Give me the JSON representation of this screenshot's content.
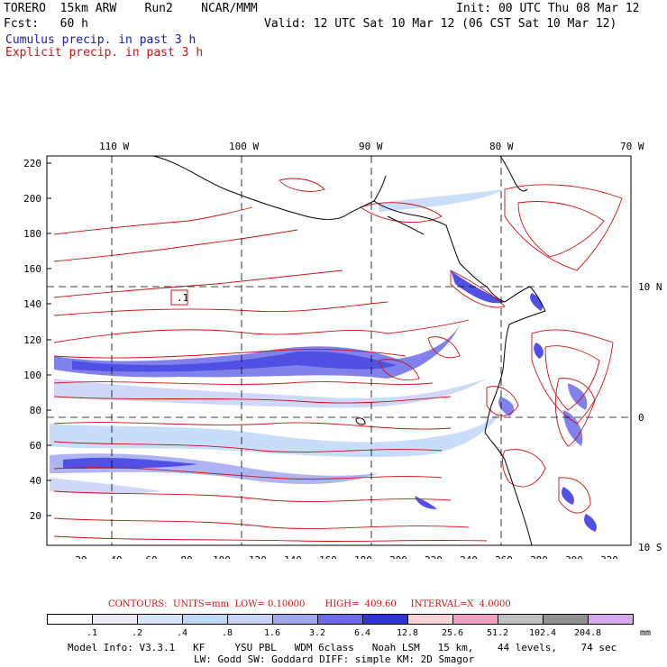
{
  "header": {
    "model_line": "TORERO  15km ARW    Run2    NCAR/MMM",
    "init_line": "Init: 00 UTC Thu 08 Mar 12",
    "fcst_line": "Fcst:   60 h",
    "valid_line": "Valid: 12 UTC Sat 10 Mar 12 (06 CST Sat 10 Mar 12)",
    "cumulus_label": "Cumulus precip. in past 3 h",
    "explicit_label": "Explicit precip. in past 3 h"
  },
  "colors": {
    "cumulus": "#1a1ab0",
    "explicit": "#d01010",
    "coastline": "#000000"
  },
  "map": {
    "top_lon_labels": [
      "110 W",
      "100 W",
      "90 W",
      "80 W",
      "70 W"
    ],
    "right_lat_labels": [
      "10 N",
      "0",
      "10 S"
    ],
    "y_axis_labels": [
      "220",
      "200",
      "180",
      "160",
      "140",
      "120",
      "100",
      "80",
      "60",
      "40",
      "20"
    ],
    "x_axis_labels": [
      "20",
      "40",
      "60",
      "80",
      "100",
      "120",
      "140",
      "160",
      "180",
      "200",
      "220",
      "240",
      "260",
      "280",
      "300",
      "320"
    ],
    "marker_label": ".1"
  },
  "contour_info": "CONTOURS:  UNITS=mm  LOW= 0.10000       HIGH=  409.60     INTERVAL=X  4.0000",
  "colorbar": {
    "levels": [
      ".1",
      ".2",
      ".4",
      ".8",
      "1.6",
      "3.2",
      "6.4",
      "12.8",
      "25.6",
      "51.2",
      "102.4",
      "204.8"
    ],
    "colors": [
      "#ffffff",
      "#ececf8",
      "#d6e6fa",
      "#bfd8f8",
      "#c8d2fa",
      "#a0a8f0",
      "#6c6ce8",
      "#3232e0",
      "#f8d4d8",
      "#f0a0c0",
      "#c0c0c0",
      "#909090",
      "#d8a8f0"
    ],
    "unit": "mm"
  },
  "model_info": {
    "line1": "Model Info: V3.3.1   KF     YSU PBL   WDM 6class   Noah LSM   15 km,    44 levels,    74 sec",
    "line2": "LW: Godd SW: Goddard DIFF: simple KM: 2D Smagor"
  }
}
